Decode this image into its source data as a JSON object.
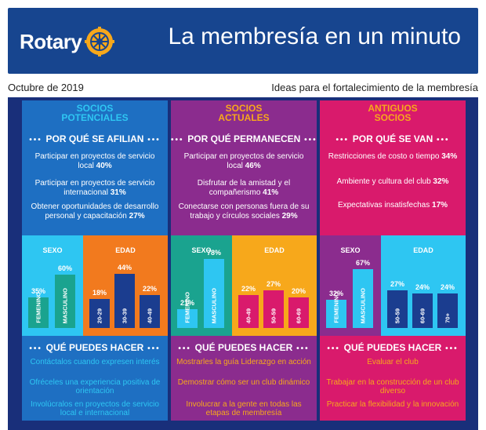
{
  "header": {
    "logo_text": "Rotary",
    "title": "La membresía en un minuto"
  },
  "subheader": {
    "date": "Octubre de 2019",
    "tagline": "Ideas para el fortalecimiento de la membresía"
  },
  "columns": [
    {
      "title": "SOCIOS\nPOTENCIALES",
      "reasons_head": "POR QUÉ SE AFILIAN",
      "reasons": [
        {
          "text": "Participar en proyectos de servicio local",
          "pct": "40%"
        },
        {
          "text": "Participar en proyectos de servicio internacional",
          "pct": "31%"
        },
        {
          "text": "Obtener oportunidades de desarrollo personal y capacitación",
          "pct": "27%"
        }
      ],
      "sex_label": "SEXO",
      "age_label": "EDAD",
      "sex": [
        {
          "label": "FEMENINO",
          "pct": "35%",
          "value": 35
        },
        {
          "label": "MASCULINO",
          "pct": "60%",
          "value": 60
        }
      ],
      "age": [
        {
          "label": "20-29",
          "pct": "18%",
          "value": 18
        },
        {
          "label": "30-39",
          "pct": "44%",
          "value": 44
        },
        {
          "label": "40-49",
          "pct": "22%",
          "value": 22
        }
      ],
      "tips_head": "QUÉ PUEDES HACER",
      "tips": [
        "Contáctalos cuando expresen interés",
        "Ofréceles una experiencia positiva de orientación",
        "Involúcralos en proyectos de servicio local e internacional"
      ]
    },
    {
      "title": "SOCIOS\nACTUALES",
      "reasons_head": "POR QUÉ PERMANECEN",
      "reasons": [
        {
          "text": "Participar en proyectos de servicio local",
          "pct": "46%"
        },
        {
          "text": "Disfrutar de la amistad y el compañerismo",
          "pct": "41%"
        },
        {
          "text": "Conectarse con personas fuera de su trabajo y círculos sociales",
          "pct": "29%"
        }
      ],
      "sex_label": "SEXO",
      "age_label": "EDAD",
      "sex": [
        {
          "label": "FEMENINO",
          "pct": "21%",
          "value": 21
        },
        {
          "label": "MASCULINO",
          "pct": "78%",
          "value": 78
        }
      ],
      "age": [
        {
          "label": "40-49",
          "pct": "22%",
          "value": 22
        },
        {
          "label": "50-59",
          "pct": "27%",
          "value": 27
        },
        {
          "label": "60-69",
          "pct": "20%",
          "value": 20
        }
      ],
      "tips_head": "QUÉ PUEDES HACER",
      "tips": [
        "Mostrarles la guía Liderazgo en acción",
        "Demostrar cómo ser un club dinámico",
        "Involucrar a la gente en todas las etapas de membresía"
      ]
    },
    {
      "title": "ANTIGUOS\nSOCIOS",
      "reasons_head": "POR QUÉ SE VAN",
      "reasons": [
        {
          "text": "Restricciones de costo o tiempo",
          "pct": "34%"
        },
        {
          "text": "Ambiente y cultura del club",
          "pct": "32%"
        },
        {
          "text": "Expectativas insatisfechas",
          "pct": "17%"
        }
      ],
      "sex_label": "SEXO",
      "age_label": "EDAD",
      "sex": [
        {
          "label": "FEMENINO",
          "pct": "32%",
          "value": 32
        },
        {
          "label": "MASCULINO",
          "pct": "67%",
          "value": 67
        }
      ],
      "age": [
        {
          "label": "50-59",
          "pct": "27%",
          "value": 27
        },
        {
          "label": "60-69",
          "pct": "24%",
          "value": 24
        },
        {
          "label": "70+",
          "pct": "24%",
          "value": 24
        }
      ],
      "tips_head": "QUÉ PUEDES HACER",
      "tips": [
        "Evaluar el club",
        "Trabajar en la construcción de un club diverso",
        "Practicar la flexibilidad y la innovación"
      ]
    }
  ],
  "colors": {
    "header_blue": "#17458f",
    "background_navy": "#192f7a",
    "col1": "#1e6fc2",
    "col2": "#8b2c8e",
    "col3": "#d91a6c",
    "sky": "#2ec6f2",
    "gold": "#f7a81b",
    "teal": "#1aa38f",
    "orange": "#f27a1e",
    "dark_blue": "#1b3d8f",
    "pink": "#d91a6c"
  },
  "icons": {
    "logo": "rotary-wheel-icon"
  }
}
